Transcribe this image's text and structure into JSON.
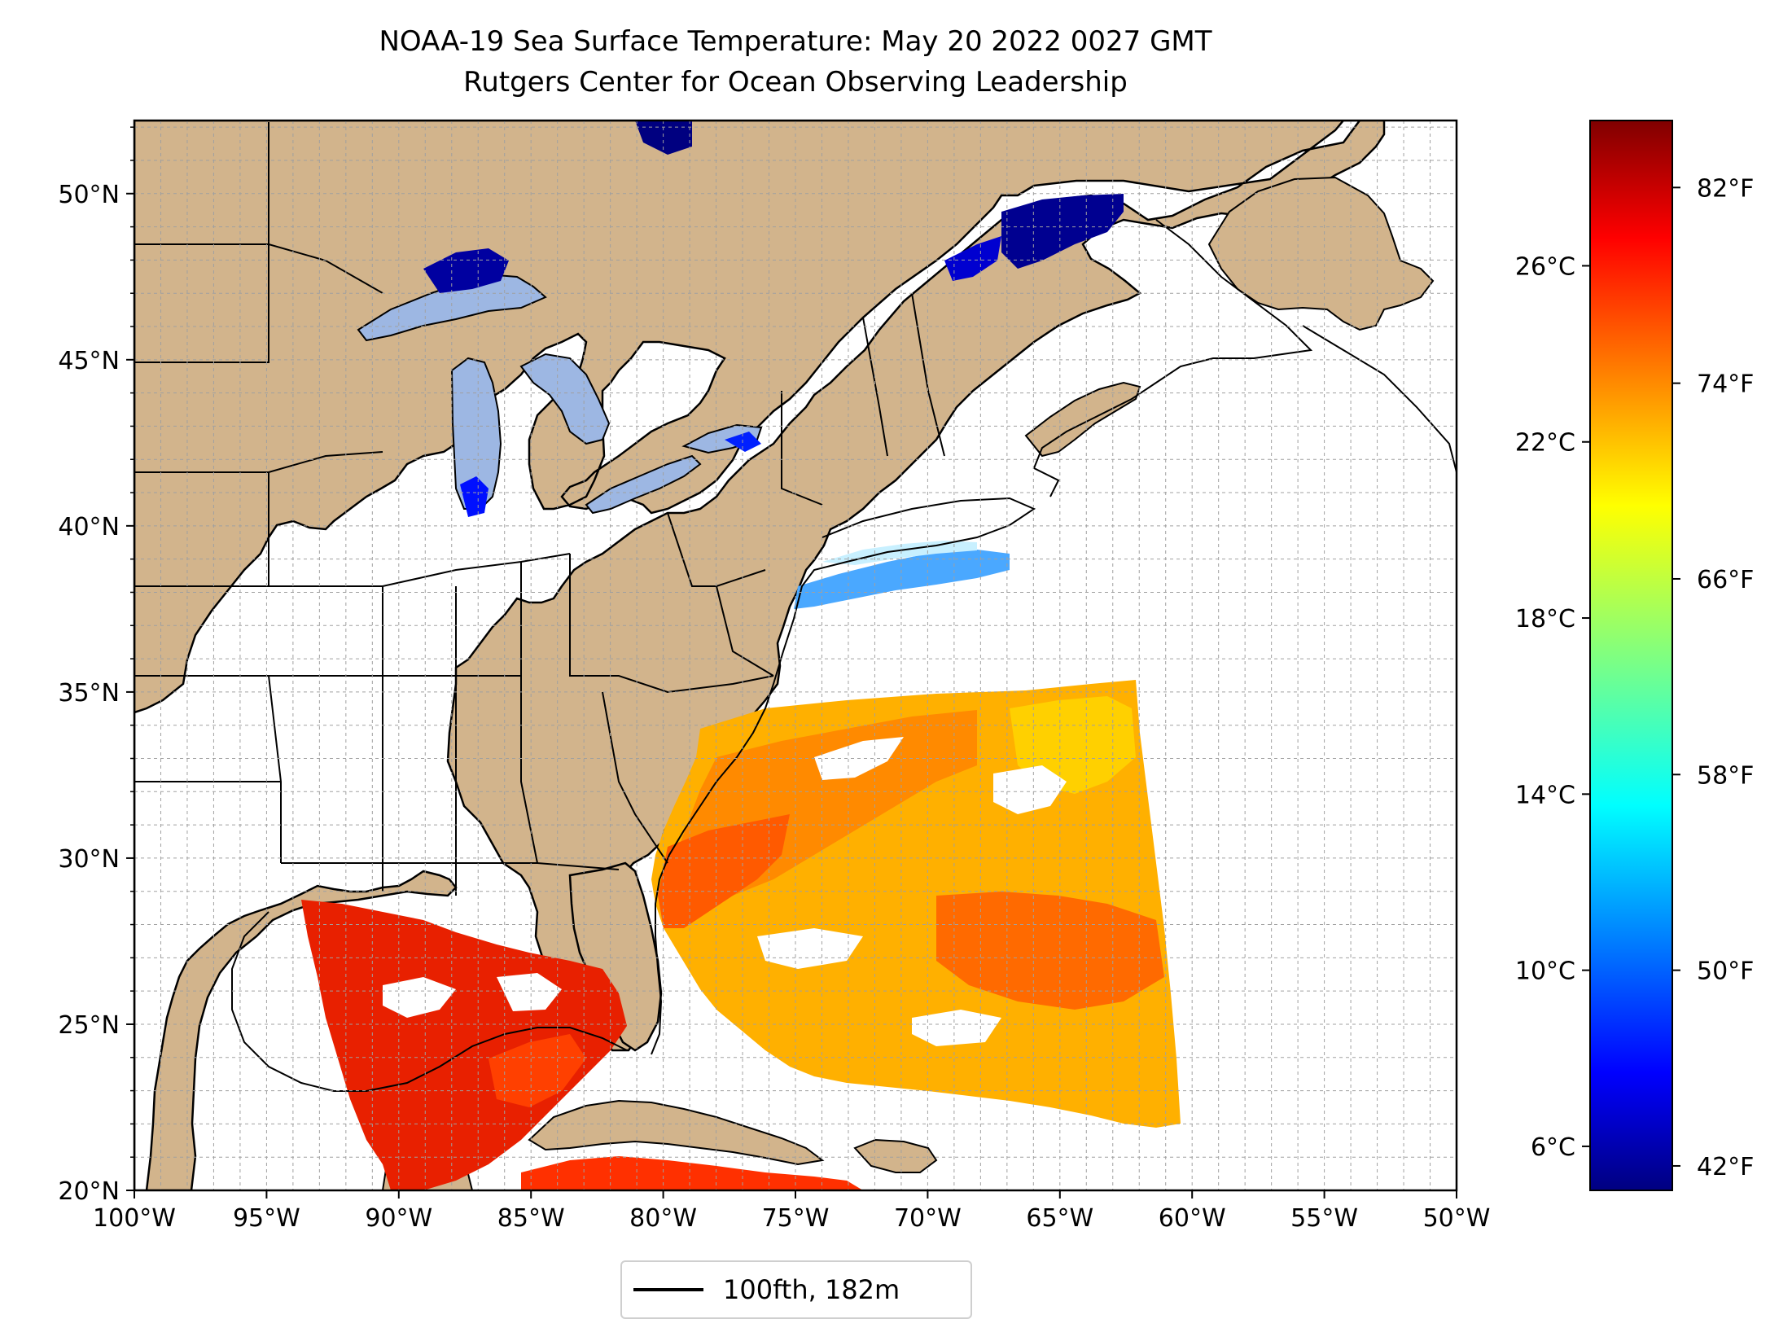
{
  "title": {
    "line1": "NOAA-19 Sea Surface Temperature: May 20 2022 0027 GMT",
    "line2": "Rutgers Center for Ocean Observing Leadership"
  },
  "map": {
    "lon_range": [
      -100,
      -50
    ],
    "lat_range": [
      20,
      52.2
    ],
    "lon_ticks": [
      "100°W",
      "95°W",
      "90°W",
      "85°W",
      "80°W",
      "75°W",
      "70°W",
      "65°W",
      "60°W",
      "55°W",
      "50°W"
    ],
    "lat_ticks": [
      "20°N",
      "25°N",
      "30°N",
      "35°N",
      "40°N",
      "45°N",
      "50°N"
    ],
    "land_color": "#d2b48c",
    "lake_color": "#9db7e3",
    "grid": "dashed 1° gridlines"
  },
  "legend": {
    "label": "100fth, 182m"
  },
  "colorbar": {
    "colormap": "jet",
    "range_c": [
      5,
      29.3
    ],
    "celsius_ticks": [
      "6°C",
      "10°C",
      "14°C",
      "18°C",
      "22°C",
      "26°C"
    ],
    "fahrenheit_ticks": [
      "42°F",
      "50°F",
      "58°F",
      "66°F",
      "74°F",
      "82°F"
    ],
    "colors": [
      "#000080",
      "#0000ff",
      "#0080ff",
      "#00ffff",
      "#80ff80",
      "#ffff00",
      "#ff8000",
      "#ff0000",
      "#800000"
    ]
  }
}
